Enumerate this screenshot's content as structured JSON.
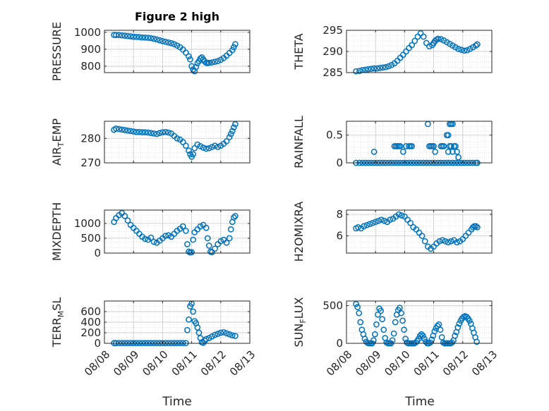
{
  "figure": {
    "title": "Figure 2 high",
    "xlabel": "Time",
    "marker_color": "#0072BD"
  },
  "chart_data": [
    {
      "type": "scatter",
      "ylabel_main": "PRESSURE",
      "ylabel_sub": "",
      "ylabel_tail": "",
      "title": "Figure 2 high",
      "xlabel": "",
      "ylim": [
        762,
        1012
      ],
      "yticks": [
        800,
        900,
        1000
      ],
      "xlim": [
        0,
        5
      ],
      "xticks": [],
      "grid": true,
      "x": [
        0.33,
        0.4,
        0.5,
        0.6,
        0.7,
        0.8,
        0.9,
        1.0,
        1.1,
        1.2,
        1.3,
        1.4,
        1.5,
        1.6,
        1.7,
        1.8,
        1.9,
        2.0,
        2.1,
        2.2,
        2.3,
        2.4,
        2.5,
        2.6,
        2.7,
        2.8,
        2.9,
        2.95,
        3.0,
        3.05,
        3.1,
        3.15,
        3.2,
        3.25,
        3.3,
        3.35,
        3.4,
        3.45,
        3.5,
        3.55,
        3.6,
        3.7,
        3.8,
        3.9,
        4.0,
        4.1,
        4.2,
        4.3,
        4.4,
        4.45,
        4.5
      ],
      "y": [
        985,
        984,
        984,
        982,
        980,
        978,
        976,
        974,
        973,
        972,
        970,
        969,
        968,
        966,
        962,
        958,
        953,
        948,
        944,
        940,
        936,
        930,
        922,
        912,
        898,
        880,
        858,
        840,
        800,
        780,
        770,
        795,
        818,
        830,
        845,
        852,
        840,
        828,
        820,
        818,
        820,
        822,
        826,
        830,
        838,
        848,
        862,
        878,
        895,
        912,
        930
      ]
    },
    {
      "type": "scatter",
      "ylabel_main": "THETA",
      "ylabel_sub": "",
      "ylabel_tail": "",
      "title": "",
      "xlabel": "",
      "ylim": [
        285,
        295
      ],
      "yticks": [
        285,
        290,
        295
      ],
      "xlim": [
        0,
        5
      ],
      "xticks": [],
      "grid": true,
      "x": [
        0.33,
        0.45,
        0.55,
        0.65,
        0.75,
        0.85,
        0.95,
        1.05,
        1.15,
        1.25,
        1.35,
        1.45,
        1.55,
        1.65,
        1.75,
        1.85,
        1.95,
        2.05,
        2.15,
        2.25,
        2.35,
        2.45,
        2.55,
        2.65,
        2.75,
        2.85,
        2.95,
        3.0,
        3.05,
        3.1,
        3.15,
        3.25,
        3.35,
        3.45,
        3.55,
        3.65,
        3.75,
        3.85,
        3.95,
        4.05,
        4.15,
        4.25,
        4.35,
        4.45,
        4.5
      ],
      "y": [
        285.3,
        285.4,
        285.6,
        285.7,
        285.8,
        285.9,
        286.0,
        286.0,
        286.1,
        286.2,
        286.3,
        286.5,
        286.8,
        287.2,
        287.8,
        288.5,
        289.2,
        290.0,
        290.8,
        291.5,
        292.5,
        293.5,
        294.3,
        293.5,
        292.0,
        291.2,
        291.5,
        292.0,
        292.5,
        292.8,
        293.0,
        292.9,
        292.6,
        292.2,
        291.8,
        291.4,
        291.0,
        290.6,
        290.4,
        290.2,
        290.3,
        290.6,
        291.0,
        291.4,
        291.7
      ]
    },
    {
      "type": "scatter",
      "ylabel_main": "AIR",
      "ylabel_sub": "T",
      "ylabel_tail": "EMP",
      "title": "",
      "xlabel": "",
      "ylim": [
        270,
        287
      ],
      "yticks": [
        270,
        280
      ],
      "xlim": [
        0,
        5
      ],
      "xticks": [],
      "grid": true,
      "x": [
        0.33,
        0.4,
        0.5,
        0.6,
        0.7,
        0.8,
        0.9,
        1.0,
        1.1,
        1.2,
        1.3,
        1.4,
        1.5,
        1.6,
        1.7,
        1.8,
        1.9,
        2.0,
        2.1,
        2.2,
        2.3,
        2.4,
        2.5,
        2.6,
        2.7,
        2.8,
        2.9,
        2.95,
        3.0,
        3.05,
        3.1,
        3.2,
        3.3,
        3.4,
        3.5,
        3.6,
        3.7,
        3.8,
        3.9,
        4.0,
        4.1,
        4.2,
        4.3,
        4.35,
        4.4,
        4.45,
        4.5
      ],
      "y": [
        283.5,
        284.0,
        283.8,
        283.6,
        283.4,
        283.2,
        283.0,
        282.8,
        282.6,
        282.6,
        282.5,
        282.5,
        282.4,
        282.2,
        282.0,
        281.8,
        282.2,
        282.5,
        282.6,
        282.4,
        282.0,
        281.0,
        280.0,
        279.5,
        278.5,
        277.0,
        275.0,
        273.5,
        272.5,
        273.5,
        276.0,
        277.5,
        276.8,
        276.2,
        275.8,
        276.0,
        276.5,
        277.0,
        276.5,
        277.0,
        277.8,
        278.8,
        280.5,
        281.8,
        283.0,
        284.5,
        285.8
      ]
    },
    {
      "type": "scatter",
      "ylabel_main": "RAINFALL",
      "ylabel_sub": "",
      "ylabel_tail": "",
      "title": "",
      "xlabel": "",
      "ylim": [
        0,
        0.75
      ],
      "yticks": [
        0,
        0.5
      ],
      "xlim": [
        0,
        5
      ],
      "xticks": [],
      "grid": true,
      "x": [
        0.33,
        0.45,
        0.55,
        0.65,
        0.75,
        0.85,
        0.95,
        1.05,
        1.15,
        1.25,
        1.35,
        1.45,
        1.55,
        1.65,
        1.75,
        1.85,
        1.95,
        2.05,
        2.15,
        2.25,
        2.35,
        2.45,
        2.55,
        2.65,
        2.75,
        2.85,
        2.95,
        3.05,
        3.15,
        3.25,
        3.35,
        3.45,
        3.55,
        3.65,
        3.75,
        3.85,
        3.95,
        4.05,
        4.15,
        4.25,
        4.35,
        4.45,
        4.5,
        0.95,
        1.65,
        1.7,
        1.75,
        1.8,
        1.85,
        1.95,
        2.05,
        2.15,
        2.2,
        2.25,
        2.85,
        2.9,
        2.95,
        3.0,
        3.05,
        3.25,
        3.3,
        3.35,
        3.5,
        3.55,
        3.6,
        3.65,
        2.8,
        3.45,
        3.5,
        3.55,
        3.6,
        3.65,
        3.7,
        3.75,
        3.8,
        3.85
      ],
      "y": [
        0,
        0,
        0,
        0,
        0,
        0,
        0,
        0,
        0,
        0,
        0,
        0,
        0,
        0,
        0,
        0,
        0,
        0,
        0,
        0,
        0,
        0,
        0,
        0,
        0,
        0,
        0,
        0,
        0,
        0,
        0,
        0,
        0,
        0,
        0,
        0,
        0,
        0,
        0,
        0,
        0,
        0,
        0,
        0.2,
        0.3,
        0.3,
        0.3,
        0.3,
        0.3,
        0.2,
        0.3,
        0.3,
        0.3,
        0.3,
        0.3,
        0.3,
        0.3,
        0.3,
        0.2,
        0.3,
        0.3,
        0.3,
        0.2,
        0.3,
        0.7,
        0.7,
        0.7,
        0.5,
        0.5,
        0.7,
        0.3,
        0.2,
        0.3,
        0.3,
        0.2,
        0.1
      ]
    },
    {
      "type": "scatter",
      "ylabel_main": "MIXDEPTH",
      "ylabel_sub": "",
      "ylabel_tail": "",
      "title": "",
      "xlabel": "",
      "ylim": [
        0,
        1450
      ],
      "yticks": [
        0,
        500,
        1000
      ],
      "xlim": [
        0,
        5
      ],
      "xticks": [],
      "grid": true,
      "x": [
        0.33,
        0.4,
        0.5,
        0.6,
        0.7,
        0.8,
        0.9,
        1.0,
        1.1,
        1.2,
        1.3,
        1.4,
        1.5,
        1.6,
        1.7,
        1.8,
        1.9,
        2.0,
        2.1,
        2.2,
        2.3,
        2.4,
        2.5,
        2.6,
        2.7,
        2.8,
        2.85,
        2.9,
        2.95,
        3.0,
        3.05,
        3.1,
        3.2,
        3.3,
        3.4,
        3.5,
        3.55,
        3.6,
        3.65,
        3.7,
        3.8,
        3.9,
        4.0,
        4.1,
        4.2,
        4.3,
        4.35,
        4.4,
        4.45,
        4.5
      ],
      "y": [
        1050,
        1180,
        1280,
        1350,
        1250,
        1100,
        950,
        850,
        750,
        650,
        550,
        480,
        450,
        520,
        380,
        350,
        420,
        500,
        580,
        600,
        550,
        650,
        750,
        820,
        900,
        750,
        300,
        50,
        20,
        30,
        450,
        700,
        800,
        900,
        950,
        850,
        500,
        250,
        50,
        30,
        150,
        300,
        400,
        450,
        350,
        500,
        800,
        1050,
        1200,
        1250
      ]
    },
    {
      "type": "scatter",
      "ylabel_main": "H2OMIXRA",
      "ylabel_sub": "",
      "ylabel_tail": "",
      "title": "",
      "xlabel": "",
      "ylim": [
        4.4,
        8.4
      ],
      "yticks": [
        6,
        8
      ],
      "xlim": [
        0,
        5
      ],
      "xticks": [],
      "grid": true,
      "x": [
        0.33,
        0.4,
        0.5,
        0.6,
        0.7,
        0.8,
        0.9,
        1.0,
        1.1,
        1.2,
        1.3,
        1.4,
        1.5,
        1.6,
        1.7,
        1.8,
        1.9,
        2.0,
        2.1,
        2.2,
        2.3,
        2.4,
        2.5,
        2.6,
        2.7,
        2.8,
        2.9,
        3.0,
        3.1,
        3.2,
        3.3,
        3.4,
        3.5,
        3.6,
        3.7,
        3.8,
        3.9,
        4.0,
        4.1,
        4.2,
        4.3,
        4.35,
        4.4,
        4.45,
        4.5
      ],
      "y": [
        6.7,
        6.8,
        6.7,
        6.9,
        7.0,
        7.1,
        7.2,
        7.3,
        7.4,
        7.5,
        7.4,
        7.3,
        7.5,
        7.6,
        7.8,
        8.0,
        7.9,
        7.8,
        7.5,
        7.2,
        6.8,
        6.6,
        6.3,
        6.0,
        5.5,
        5.0,
        4.8,
        5.0,
        5.3,
        5.5,
        5.6,
        5.5,
        5.4,
        5.5,
        5.6,
        5.4,
        5.5,
        5.7,
        6.0,
        6.3,
        6.6,
        6.8,
        6.9,
        6.9,
        6.8
      ]
    },
    {
      "type": "scatter",
      "ylabel_main": "TERR",
      "ylabel_sub": "M",
      "ylabel_tail": "SL",
      "title": "",
      "xlabel": "Time",
      "ylim": [
        0,
        800
      ],
      "yticks": [
        0,
        200,
        400,
        600
      ],
      "xlim": [
        0,
        5
      ],
      "xticks": [
        "08/08",
        "08/09",
        "08/10",
        "08/11",
        "08/12",
        "08/13"
      ],
      "grid": true,
      "x": [
        0.33,
        0.4,
        0.5,
        0.6,
        0.7,
        0.8,
        0.9,
        1.0,
        1.1,
        1.2,
        1.3,
        1.4,
        1.5,
        1.6,
        1.7,
        1.8,
        1.9,
        2.0,
        2.1,
        2.2,
        2.3,
        2.4,
        2.5,
        2.6,
        2.7,
        2.8,
        2.85,
        2.9,
        2.95,
        3.0,
        3.05,
        3.1,
        3.15,
        3.2,
        3.25,
        3.3,
        3.35,
        3.4,
        3.45,
        3.5,
        3.6,
        3.7,
        3.8,
        3.9,
        4.0,
        4.1,
        4.2,
        4.3,
        4.4,
        4.5
      ],
      "y": [
        5,
        5,
        5,
        5,
        5,
        5,
        5,
        5,
        5,
        5,
        5,
        5,
        5,
        5,
        5,
        5,
        5,
        5,
        5,
        5,
        5,
        5,
        5,
        5,
        5,
        5,
        250,
        450,
        700,
        750,
        600,
        420,
        380,
        300,
        200,
        100,
        20,
        10,
        50,
        80,
        100,
        130,
        160,
        180,
        200,
        210,
        190,
        170,
        150,
        140
      ]
    },
    {
      "type": "scatter",
      "ylabel_main": "SUN",
      "ylabel_sub": "F",
      "ylabel_tail": "LUX",
      "title": "",
      "xlabel": "Time",
      "ylim": [
        0,
        560
      ],
      "yticks": [
        0,
        500
      ],
      "xlim": [
        0,
        5
      ],
      "xticks": [
        "08/08",
        "08/09",
        "08/10",
        "08/11",
        "08/12",
        "08/13"
      ],
      "grid": true,
      "x": [
        0.33,
        0.38,
        0.43,
        0.48,
        0.53,
        0.58,
        0.63,
        0.68,
        0.73,
        0.78,
        0.83,
        0.88,
        0.93,
        0.98,
        1.03,
        1.08,
        1.13,
        1.18,
        1.23,
        1.28,
        1.33,
        1.38,
        1.43,
        1.48,
        1.53,
        1.58,
        1.63,
        1.68,
        1.73,
        1.78,
        1.83,
        1.88,
        1.93,
        1.98,
        2.03,
        2.08,
        2.13,
        2.18,
        2.23,
        2.28,
        2.33,
        2.38,
        2.43,
        2.48,
        2.53,
        2.58,
        2.63,
        2.68,
        2.73,
        2.78,
        2.83,
        2.88,
        2.93,
        2.98,
        3.03,
        3.08,
        3.13,
        3.18,
        3.23,
        3.28,
        3.33,
        3.38,
        3.43,
        3.48,
        3.53,
        3.58,
        3.63,
        3.68,
        3.73,
        3.78,
        3.83,
        3.88,
        3.93,
        3.98,
        4.03,
        4.08,
        4.13,
        4.18,
        4.23,
        4.28,
        4.33,
        4.38,
        4.43,
        4.48
      ],
      "y": [
        520,
        480,
        400,
        280,
        180,
        120,
        60,
        20,
        5,
        0,
        0,
        0,
        40,
        120,
        250,
        380,
        460,
        430,
        320,
        180,
        70,
        10,
        0,
        0,
        0,
        40,
        130,
        280,
        380,
        440,
        470,
        400,
        300,
        180,
        60,
        10,
        0,
        0,
        0,
        0,
        0,
        10,
        30,
        60,
        100,
        120,
        100,
        60,
        20,
        0,
        0,
        10,
        50,
        100,
        160,
        200,
        230,
        250,
        180,
        80,
        10,
        0,
        0,
        0,
        0,
        0,
        10,
        40,
        100,
        150,
        210,
        260,
        300,
        330,
        350,
        360,
        350,
        330,
        300,
        260,
        200,
        140,
        80,
        20
      ]
    }
  ]
}
